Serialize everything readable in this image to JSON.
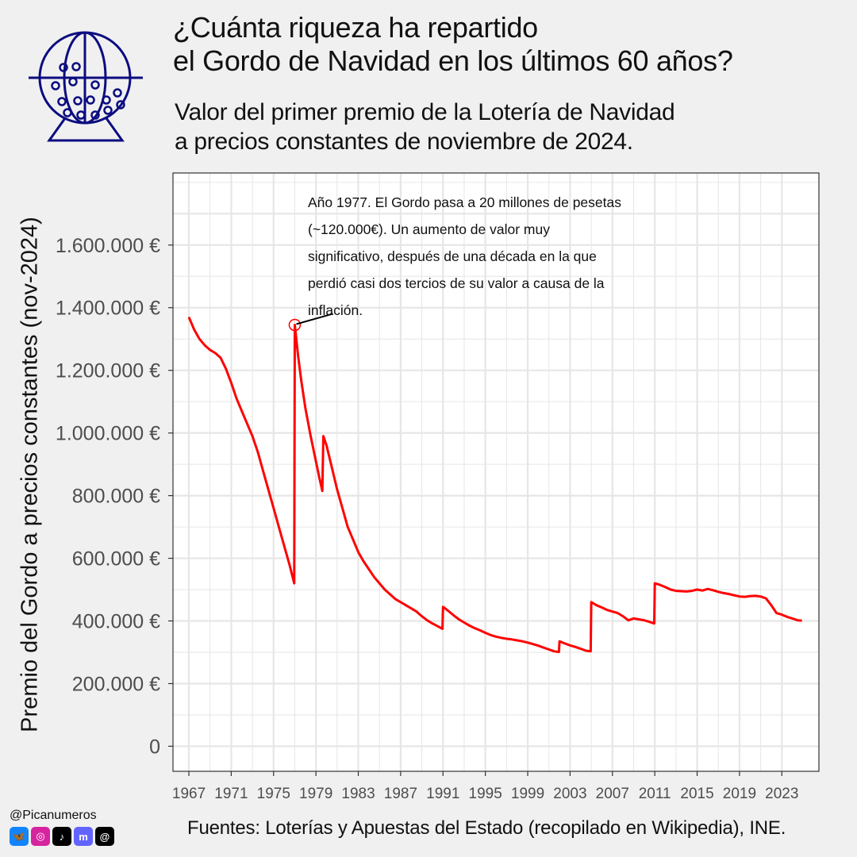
{
  "header": {
    "title_lines": [
      "¿Cuánta riqueza ha repartido",
      "el Gordo de Navidad en los últimos 60 años?"
    ],
    "subtitle_lines": [
      "Valor del primer premio de la Lotería de Navidad",
      "a precios constantes de noviembre de 2024."
    ]
  },
  "annotation": {
    "text": "Año 1977. El Gordo pasa a 20 millones de pesetas (~120.000€). Un aumento de valor muy significativo, después de una década en la que perdió casi dos tercios de su valor a causa de la inflación."
  },
  "footer": {
    "handle": "@Picanumeros",
    "source": "Fuentes: Loterías y Apuestas del Estado (recopilado en Wikipedia), INE."
  },
  "socials": [
    {
      "icon": "bluesky-icon",
      "glyph": "🦋",
      "color": "#1185fe"
    },
    {
      "icon": "instagram-icon",
      "glyph": "◎",
      "color": "#d6249f"
    },
    {
      "icon": "tiktok-icon",
      "glyph": "♪",
      "color": "#000000"
    },
    {
      "icon": "mastodon-icon",
      "glyph": "m",
      "color": "#6364ff"
    },
    {
      "icon": "threads-icon",
      "glyph": "@",
      "color": "#000000"
    }
  ],
  "colors": {
    "line": "#ff0000",
    "logo": "#0c0c80",
    "grid": "#e6e6e6",
    "background": "#f0f0f0"
  },
  "chart_data": {
    "type": "line",
    "ylabel": "Premio del Gordo a precios constantes (nov-2024)",
    "xlabel": "",
    "xlim": [
      1965.5,
      2026.5
    ],
    "ylim": [
      -80000,
      1830000
    ],
    "x_ticks": [
      1967,
      1971,
      1975,
      1979,
      1983,
      1987,
      1991,
      1995,
      1999,
      2003,
      2007,
      2011,
      2015,
      2019,
      2023
    ],
    "x_tick_labels": [
      "1967",
      "1971",
      "1975",
      "1979",
      "1983",
      "1987",
      "1991",
      "1995",
      "1999",
      "2003",
      "2007",
      "2011",
      "2015",
      "2019",
      "2023"
    ],
    "y_ticks": [
      0,
      200000,
      400000,
      600000,
      800000,
      1000000,
      1200000,
      1400000,
      1600000
    ],
    "y_tick_labels": [
      "0",
      "200.000 €",
      "400.000 €",
      "600.000 €",
      "800.000 €",
      "1.000.000 €",
      "1.200.000 €",
      "1.400.000 €",
      "1.600.000 €"
    ],
    "grid": true,
    "highlight_point": {
      "x": 1977.0,
      "y": 1345000
    },
    "series": [
      {
        "values": [
          [
            1967.0,
            1370000
          ],
          [
            1967.5,
            1330000
          ],
          [
            1968.0,
            1300000
          ],
          [
            1968.5,
            1280000
          ],
          [
            1969.0,
            1265000
          ],
          [
            1969.5,
            1255000
          ],
          [
            1970.0,
            1240000
          ],
          [
            1970.5,
            1205000
          ],
          [
            1971.0,
            1160000
          ],
          [
            1971.5,
            1110000
          ],
          [
            1972.0,
            1070000
          ],
          [
            1972.5,
            1030000
          ],
          [
            1973.0,
            990000
          ],
          [
            1973.5,
            940000
          ],
          [
            1974.0,
            880000
          ],
          [
            1974.5,
            820000
          ],
          [
            1975.0,
            760000
          ],
          [
            1975.5,
            700000
          ],
          [
            1976.0,
            640000
          ],
          [
            1976.5,
            580000
          ],
          [
            1976.95,
            520000
          ],
          [
            1977.0,
            1345000
          ],
          [
            1977.3,
            1250000
          ],
          [
            1977.6,
            1170000
          ],
          [
            1978.0,
            1080000
          ],
          [
            1978.5,
            990000
          ],
          [
            1979.0,
            910000
          ],
          [
            1979.3,
            860000
          ],
          [
            1979.6,
            815000
          ],
          [
            1979.7,
            990000
          ],
          [
            1980.0,
            960000
          ],
          [
            1980.5,
            890000
          ],
          [
            1981.0,
            820000
          ],
          [
            1981.5,
            760000
          ],
          [
            1982.0,
            700000
          ],
          [
            1982.5,
            660000
          ],
          [
            1983.0,
            620000
          ],
          [
            1983.5,
            590000
          ],
          [
            1984.0,
            565000
          ],
          [
            1984.5,
            540000
          ],
          [
            1985.0,
            520000
          ],
          [
            1985.5,
            500000
          ],
          [
            1986.0,
            485000
          ],
          [
            1986.5,
            470000
          ],
          [
            1987.0,
            460000
          ],
          [
            1987.5,
            450000
          ],
          [
            1988.0,
            440000
          ],
          [
            1988.5,
            430000
          ],
          [
            1989.0,
            415000
          ],
          [
            1989.5,
            402000
          ],
          [
            1990.0,
            392000
          ],
          [
            1990.5,
            383000
          ],
          [
            1990.95,
            375000
          ],
          [
            1991.0,
            445000
          ],
          [
            1991.5,
            432000
          ],
          [
            1992.0,
            418000
          ],
          [
            1992.5,
            405000
          ],
          [
            1993.0,
            395000
          ],
          [
            1993.5,
            385000
          ],
          [
            1994.0,
            377000
          ],
          [
            1994.5,
            370000
          ],
          [
            1995.0,
            362000
          ],
          [
            1995.5,
            355000
          ],
          [
            1996.0,
            350000
          ],
          [
            1996.5,
            346000
          ],
          [
            1997.0,
            343000
          ],
          [
            1997.5,
            341000
          ],
          [
            1998.0,
            338000
          ],
          [
            1998.5,
            335000
          ],
          [
            1999.0,
            331000
          ],
          [
            1999.5,
            326000
          ],
          [
            2000.0,
            321000
          ],
          [
            2000.5,
            315000
          ],
          [
            2001.0,
            309000
          ],
          [
            2001.5,
            303000
          ],
          [
            2001.95,
            301000
          ],
          [
            2002.0,
            335000
          ],
          [
            2002.5,
            328000
          ],
          [
            2003.0,
            322000
          ],
          [
            2003.5,
            317000
          ],
          [
            2004.0,
            311000
          ],
          [
            2004.5,
            305000
          ],
          [
            2004.95,
            303000
          ],
          [
            2005.0,
            460000
          ],
          [
            2005.5,
            450000
          ],
          [
            2006.0,
            443000
          ],
          [
            2006.5,
            435000
          ],
          [
            2007.0,
            430000
          ],
          [
            2007.5,
            425000
          ],
          [
            2008.0,
            415000
          ],
          [
            2008.5,
            402000
          ],
          [
            2009.0,
            408000
          ],
          [
            2009.5,
            405000
          ],
          [
            2010.0,
            402000
          ],
          [
            2010.5,
            397000
          ],
          [
            2010.95,
            392000
          ],
          [
            2011.0,
            520000
          ],
          [
            2011.5,
            515000
          ],
          [
            2012.0,
            508000
          ],
          [
            2012.5,
            500000
          ],
          [
            2013.0,
            496000
          ],
          [
            2013.5,
            495000
          ],
          [
            2014.0,
            494000
          ],
          [
            2014.5,
            496000
          ],
          [
            2015.0,
            500000
          ],
          [
            2015.5,
            497000
          ],
          [
            2016.0,
            502000
          ],
          [
            2016.5,
            498000
          ],
          [
            2017.0,
            493000
          ],
          [
            2017.5,
            489000
          ],
          [
            2018.0,
            486000
          ],
          [
            2018.5,
            482000
          ],
          [
            2019.0,
            478000
          ],
          [
            2019.5,
            477000
          ],
          [
            2020.0,
            479000
          ],
          [
            2020.5,
            480000
          ],
          [
            2021.0,
            478000
          ],
          [
            2021.5,
            472000
          ],
          [
            2022.0,
            450000
          ],
          [
            2022.5,
            425000
          ],
          [
            2023.0,
            420000
          ],
          [
            2023.5,
            413000
          ],
          [
            2024.0,
            408000
          ],
          [
            2024.5,
            402000
          ],
          [
            2024.9,
            401000
          ]
        ]
      }
    ]
  }
}
